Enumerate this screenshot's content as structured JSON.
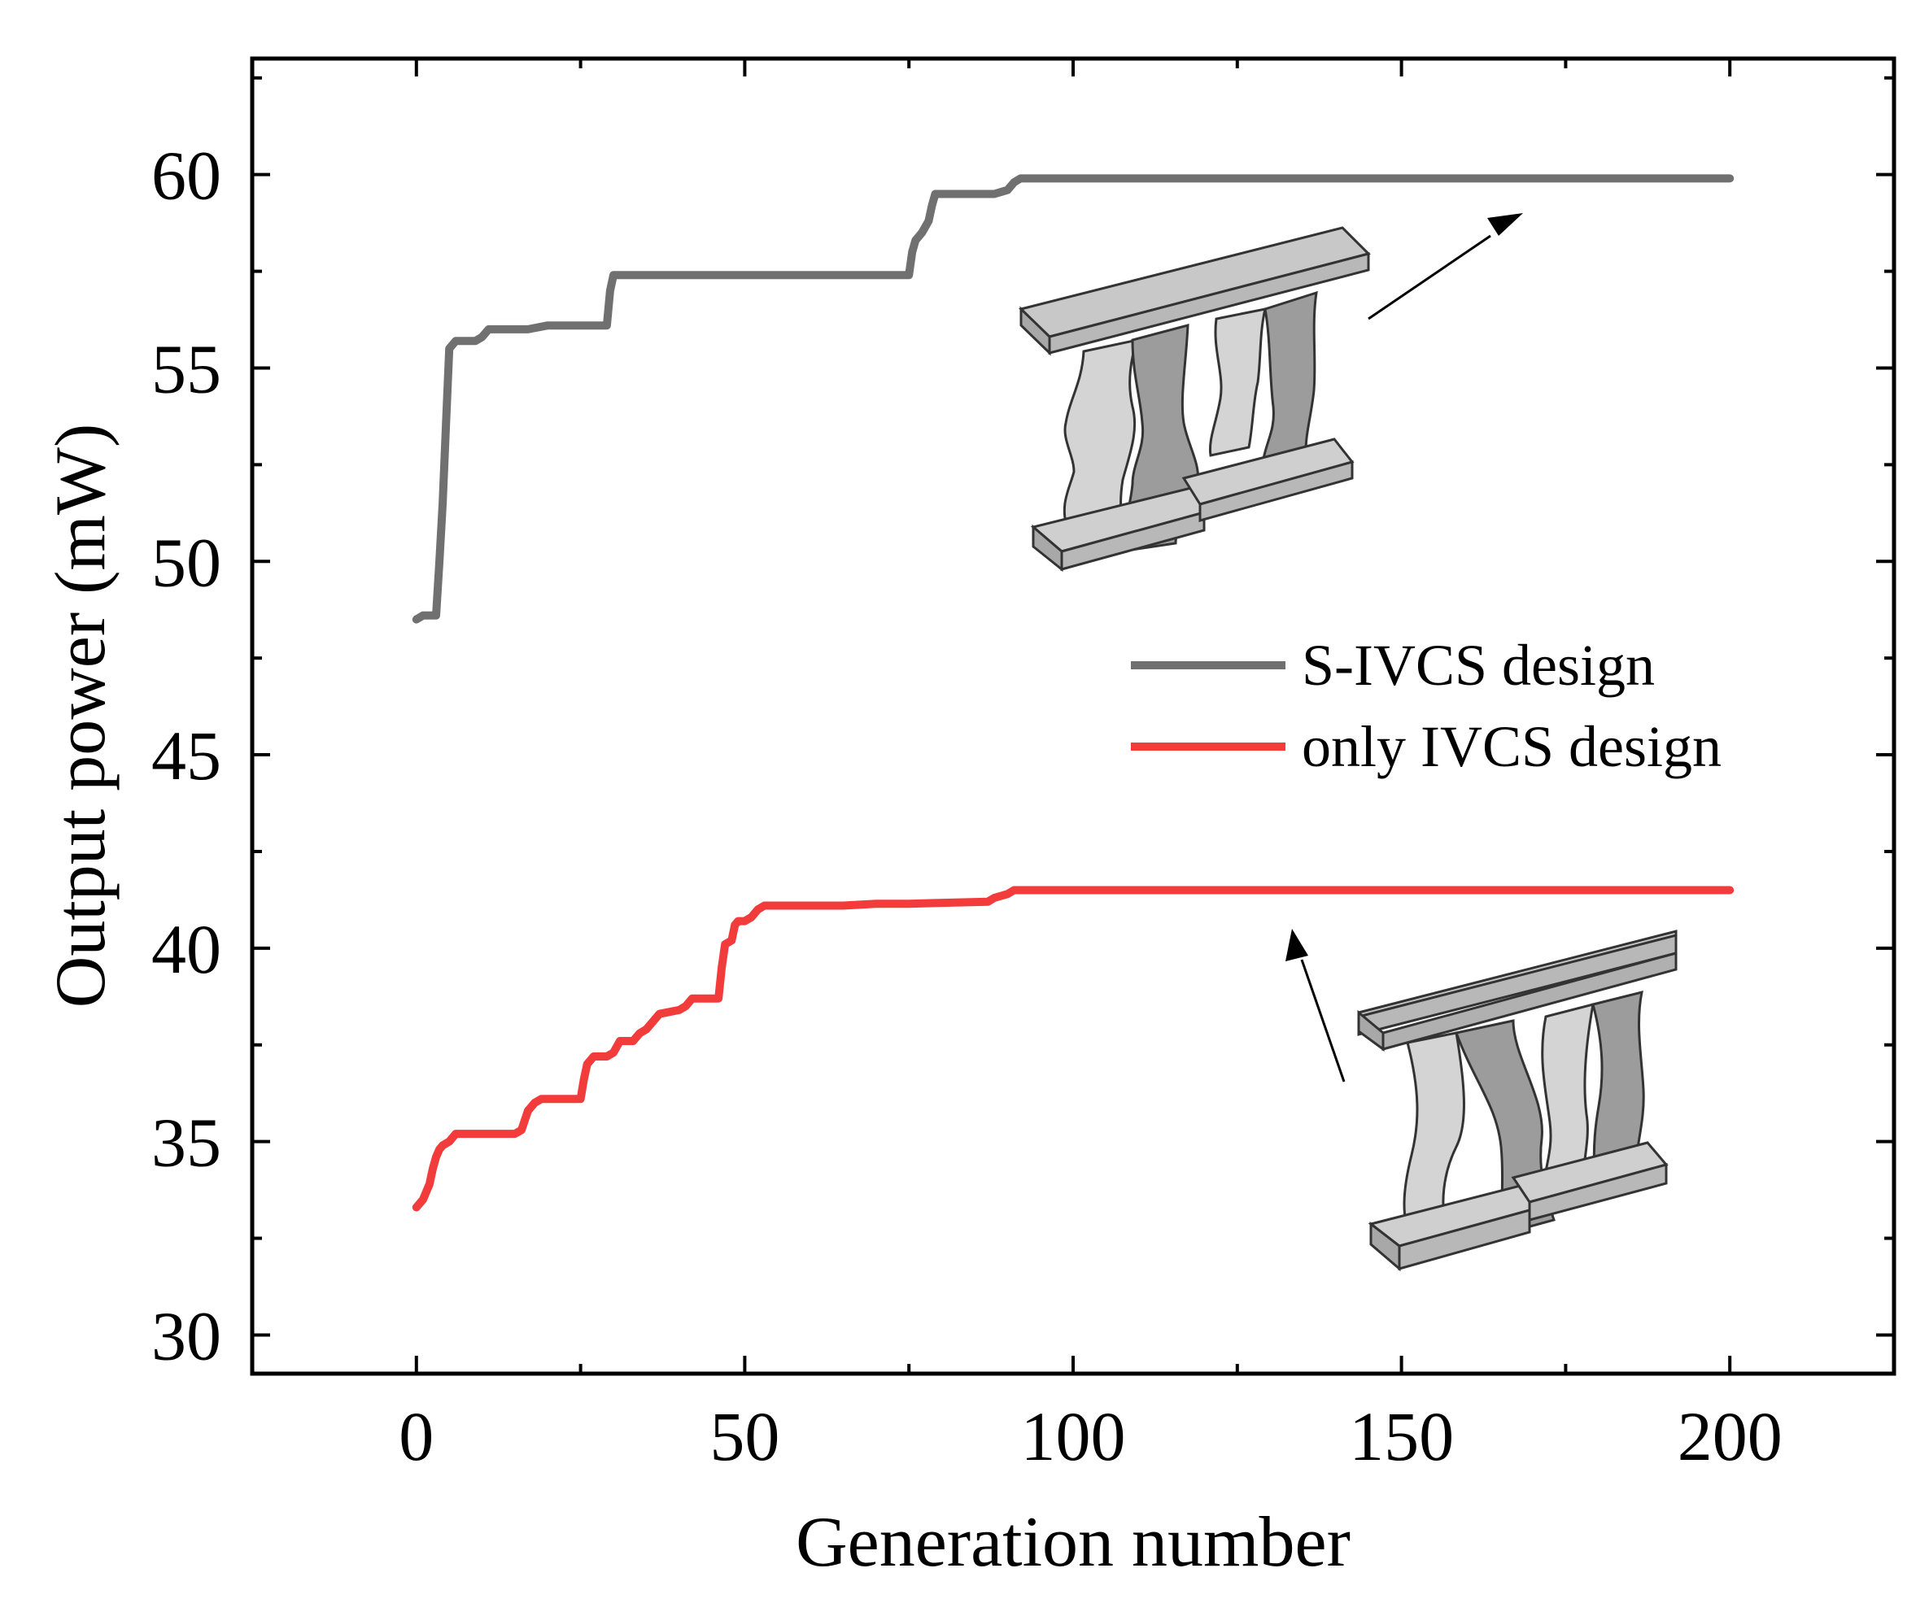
{
  "chart_data": {
    "type": "line",
    "title": "",
    "xlabel": "Generation number",
    "ylabel": "Output power (mW)",
    "xlim": [
      -25,
      225
    ],
    "ylim": [
      29,
      63
    ],
    "xticks": [
      0,
      50,
      100,
      150,
      200
    ],
    "yticks": [
      30,
      35,
      40,
      45,
      50,
      55,
      60
    ],
    "grid": false,
    "legend_position": "center-right",
    "series": [
      {
        "name": "S-IVCS design",
        "color": "#707070",
        "x": [
          0,
          1,
          3,
          3.5,
          4,
          4.5,
          5,
          5.5,
          6,
          9,
          10,
          11,
          17,
          20,
          28,
          29,
          29.5,
          30,
          60,
          75,
          75.5,
          76,
          77,
          78,
          78.5,
          79,
          79.5,
          88,
          90,
          91,
          92,
          100,
          150,
          200
        ],
        "values": [
          48.5,
          48.6,
          48.6,
          50.0,
          51.5,
          53.5,
          55.5,
          55.6,
          55.7,
          55.7,
          55.8,
          56.0,
          56.0,
          56.1,
          56.1,
          56.1,
          57.0,
          57.4,
          57.4,
          57.4,
          58.0,
          58.3,
          58.5,
          58.8,
          59.2,
          59.5,
          59.5,
          59.5,
          59.6,
          59.8,
          59.9,
          59.9,
          59.9,
          59.9
        ]
      },
      {
        "name": "only IVCS design",
        "color": "#f23c3c",
        "x": [
          0,
          1,
          2,
          2.5,
          3,
          3.5,
          4,
          5,
          6,
          10,
          15,
          16,
          17,
          18,
          19,
          22,
          25,
          25.5,
          26,
          27,
          29,
          30,
          31,
          33,
          34,
          35,
          36,
          37,
          40,
          41,
          42,
          45,
          46,
          46.5,
          47,
          48,
          48.5,
          49,
          50,
          51,
          52,
          53,
          60,
          65,
          70,
          75,
          87,
          88,
          90,
          91,
          92,
          100,
          150,
          200
        ],
        "values": [
          33.3,
          33.5,
          33.9,
          34.3,
          34.6,
          34.8,
          34.9,
          35.0,
          35.2,
          35.2,
          35.2,
          35.3,
          35.8,
          36.0,
          36.1,
          36.1,
          36.1,
          36.6,
          37.0,
          37.2,
          37.2,
          37.3,
          37.6,
          37.6,
          37.8,
          37.9,
          38.1,
          38.3,
          38.4,
          38.5,
          38.7,
          38.7,
          38.7,
          39.5,
          40.1,
          40.2,
          40.6,
          40.7,
          40.7,
          40.8,
          41.0,
          41.1,
          41.1,
          41.1,
          41.15,
          41.15,
          41.2,
          41.3,
          41.4,
          41.5,
          41.5,
          41.5,
          41.5,
          41.5
        ]
      }
    ]
  }
}
